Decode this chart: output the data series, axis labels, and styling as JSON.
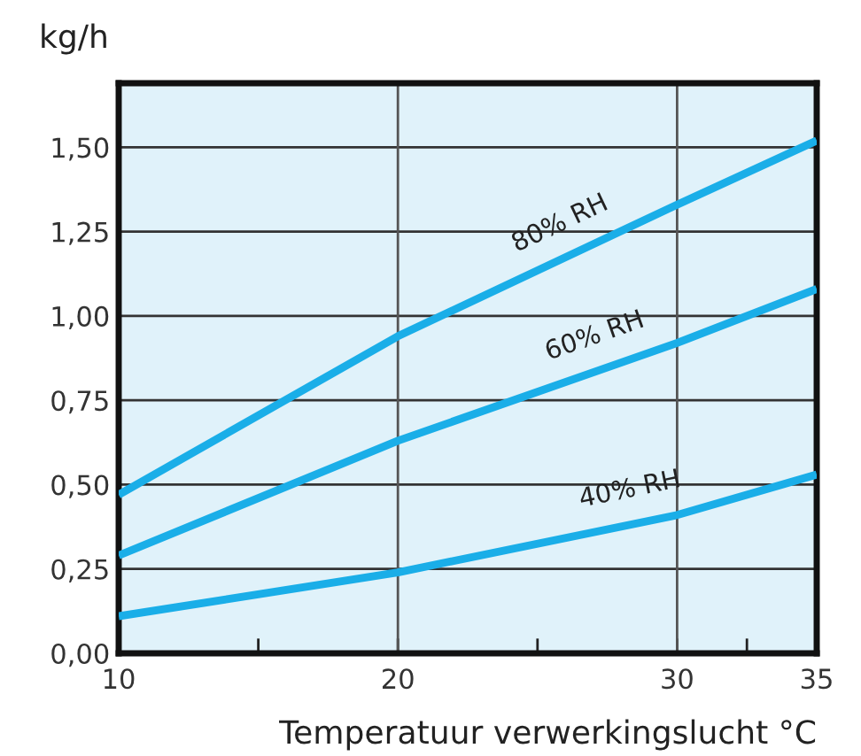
{
  "chart_data": {
    "type": "line",
    "xlabel": "Temperatuur verwerkingslucht °C",
    "ylabel": "kg/h",
    "x": [
      10,
      20,
      30,
      35
    ],
    "series": [
      {
        "name": "80% RH",
        "color": "#1aaee8",
        "values": [
          0.47,
          0.94,
          1.33,
          1.52
        ]
      },
      {
        "name": "60% RH",
        "color": "#1aaee8",
        "values": [
          0.29,
          0.63,
          0.92,
          1.08
        ]
      },
      {
        "name": "40% RH",
        "color": "#1aaee8",
        "values": [
          0.11,
          0.24,
          0.41,
          0.53
        ]
      }
    ],
    "xlim": [
      10,
      35
    ],
    "xticks": [
      10,
      {
        "value": 15,
        "label": null
      },
      20,
      {
        "value": 25,
        "label": null
      },
      30,
      {
        "value": 32.5,
        "label": null
      },
      35
    ],
    "ylim": [
      0,
      1.69
    ],
    "yticks": [
      {
        "value": 0,
        "label": "0,00"
      },
      {
        "value": 0.25,
        "label": "0,25"
      },
      {
        "value": 0.5,
        "label": "0,50"
      },
      {
        "value": 0.75,
        "label": "0,75"
      },
      {
        "value": 1,
        "label": "1,00"
      },
      {
        "value": 1.25,
        "label": "1,25"
      },
      {
        "value": 1.5,
        "label": "1,50"
      }
    ],
    "grid": "y",
    "legend": false,
    "marker": "none",
    "line_style": "solid",
    "ref_lines": [
      {
        "axis": "x",
        "value": 20,
        "label": null,
        "color": "#555555"
      },
      {
        "axis": "x",
        "value": 30,
        "label": null,
        "color": "#555555"
      }
    ]
  }
}
